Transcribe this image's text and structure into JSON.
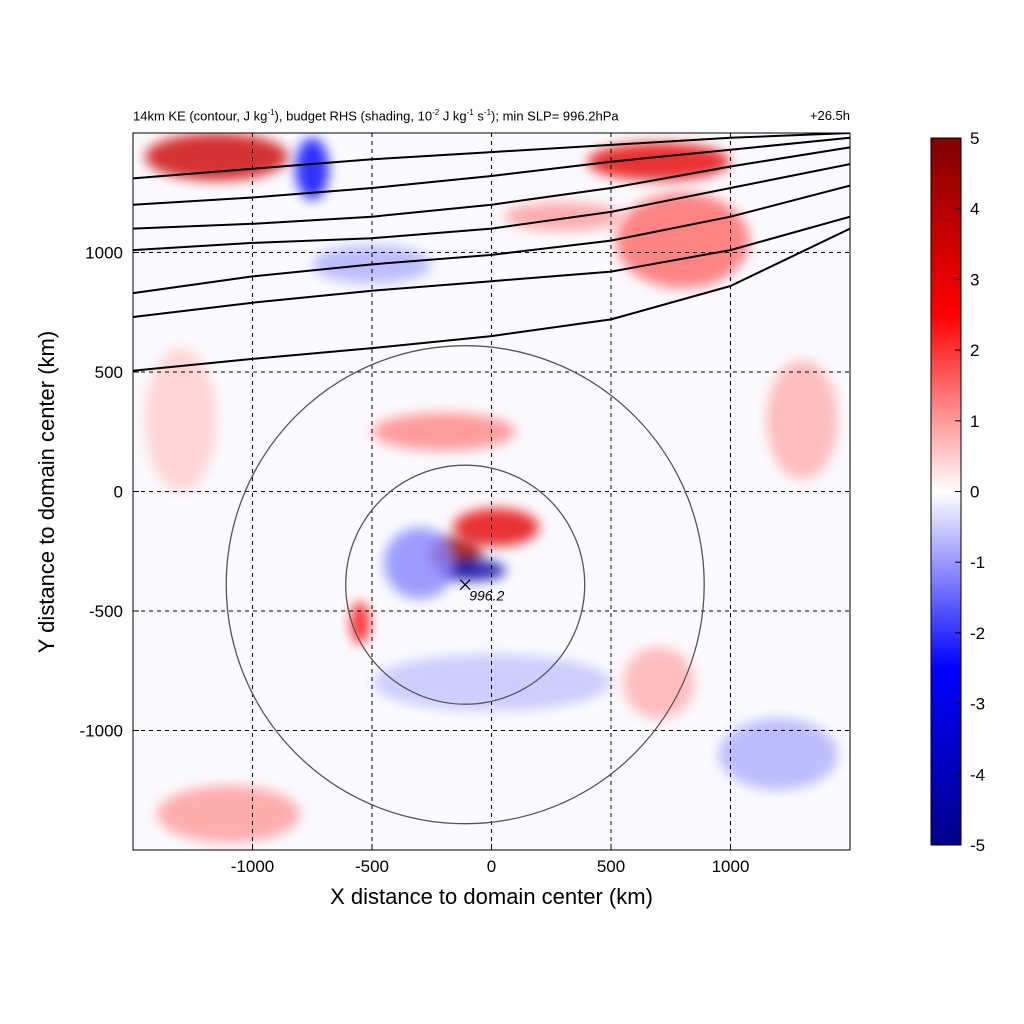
{
  "chart_data": {
    "type": "heatmap",
    "title": {
      "left_plain": "14km KE (contour, J kg",
      "left_sup1": "-1",
      "left_mid1": "), budget RHS (shading, 10",
      "left_sup2": "-2",
      "left_mid2": " J kg",
      "left_sup3": "-1",
      "left_mid3": " s",
      "left_sup4": "-1",
      "left_end": "); min SLP= 996.2hPa",
      "right": "+26.5h"
    },
    "xlabel": "X distance to domain center (km)",
    "ylabel": "Y distance to domain center (km)",
    "xlim": [
      -1500,
      1500
    ],
    "ylim": [
      -1500,
      1500
    ],
    "x_ticks": [
      -1000,
      -500,
      0,
      500,
      1000
    ],
    "x_tick_labels": [
      "-1000",
      "-500",
      "0",
      "500",
      "1000"
    ],
    "y_ticks": [
      1000,
      500,
      0,
      -500,
      -1000
    ],
    "y_tick_labels": [
      "1000",
      "500",
      "0",
      "-500",
      "-1000"
    ],
    "grid": true,
    "colorbar": {
      "range": [
        -5,
        5
      ],
      "ticks": [
        5,
        4,
        3,
        2,
        1,
        0,
        -1,
        -2,
        -3,
        -4,
        -5
      ],
      "tick_labels": [
        "5",
        "4",
        "3",
        "2",
        "1",
        "0",
        "-1",
        "-2",
        "-3",
        "-4",
        "-5"
      ],
      "colormap": [
        "#00008b",
        "#0000ff",
        "#ffffff",
        "#ff0000",
        "#800000"
      ]
    },
    "center_marker": {
      "x": -110,
      "y": -390,
      "label": "996.2"
    },
    "range_rings": [
      {
        "cx": -110,
        "cy": -390,
        "r": 500
      },
      {
        "cx": -110,
        "cy": -390,
        "r": 1000
      }
    ],
    "contour_jet_y_at_x": [
      {
        "x": [
          -1500,
          -1000,
          -500,
          0,
          500,
          1000,
          1500
        ],
        "y": [
          505,
          555,
          600,
          650,
          720,
          860,
          1100
        ]
      },
      {
        "x": [
          -1500,
          -1000,
          -500,
          0,
          500,
          1000,
          1500
        ],
        "y": [
          730,
          790,
          840,
          880,
          920,
          1010,
          1150
        ]
      },
      {
        "x": [
          -1500,
          -1000,
          -500,
          0,
          500,
          1000,
          1500
        ],
        "y": [
          830,
          900,
          950,
          990,
          1050,
          1150,
          1280
        ]
      },
      {
        "x": [
          -1500,
          -1000,
          -500,
          0,
          500,
          1000,
          1500
        ],
        "y": [
          1010,
          1040,
          1060,
          1100,
          1170,
          1270,
          1370
        ]
      },
      {
        "x": [
          -1500,
          -1000,
          -500,
          0,
          500,
          1000,
          1500
        ],
        "y": [
          1100,
          1120,
          1150,
          1200,
          1270,
          1360,
          1440
        ]
      },
      {
        "x": [
          -1500,
          -1000,
          -500,
          0,
          500,
          1000,
          1500
        ],
        "y": [
          1200,
          1230,
          1270,
          1320,
          1380,
          1430,
          1480
        ]
      },
      {
        "x": [
          -1500,
          -1000,
          -500,
          0,
          500,
          1000,
          1500
        ],
        "y": [
          1310,
          1350,
          1390,
          1420,
          1450,
          1480,
          1500
        ]
      }
    ],
    "shading_features": [
      {
        "x": -150,
        "y": -260,
        "rx": 110,
        "ry": 70,
        "value": 4.5
      },
      {
        "x": 20,
        "y": -150,
        "rx": 180,
        "ry": 80,
        "value": 3.0
      },
      {
        "x": -80,
        "y": -330,
        "rx": 140,
        "ry": 45,
        "value": -4.5
      },
      {
        "x": -300,
        "y": -300,
        "rx": 150,
        "ry": 150,
        "value": -1.2
      },
      {
        "x": -550,
        "y": -550,
        "rx": 40,
        "ry": 90,
        "value": 2.5
      },
      {
        "x": -200,
        "y": 250,
        "rx": 300,
        "ry": 80,
        "value": 1.2
      },
      {
        "x": 800,
        "y": 1050,
        "rx": 280,
        "ry": 200,
        "value": 1.5
      },
      {
        "x": -1150,
        "y": 1400,
        "rx": 300,
        "ry": 100,
        "value": 3.5
      },
      {
        "x": -750,
        "y": 1350,
        "rx": 70,
        "ry": 130,
        "value": -2.5
      },
      {
        "x": 700,
        "y": 1380,
        "rx": 300,
        "ry": 80,
        "value": 3.0
      },
      {
        "x": -500,
        "y": 950,
        "rx": 250,
        "ry": 80,
        "value": -0.8
      },
      {
        "x": 300,
        "y": 1150,
        "rx": 250,
        "ry": 60,
        "value": 1.0
      },
      {
        "x": 0,
        "y": -800,
        "rx": 500,
        "ry": 120,
        "value": -0.6
      },
      {
        "x": -1100,
        "y": -1350,
        "rx": 300,
        "ry": 120,
        "value": 1.0
      },
      {
        "x": 1200,
        "y": -1100,
        "rx": 250,
        "ry": 150,
        "value": -0.8
      },
      {
        "x": 700,
        "y": -800,
        "rx": 150,
        "ry": 150,
        "value": 0.8
      },
      {
        "x": 1300,
        "y": 300,
        "rx": 150,
        "ry": 250,
        "value": 0.8
      },
      {
        "x": -1300,
        "y": 300,
        "rx": 150,
        "ry": 300,
        "value": 0.5
      }
    ]
  }
}
